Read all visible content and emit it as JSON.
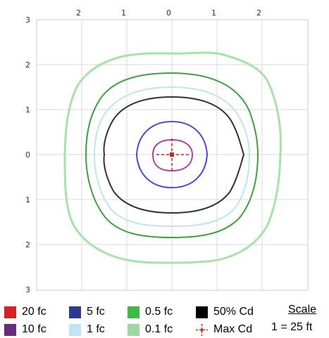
{
  "plot": {
    "top_ticks": [
      "2",
      "1",
      "0",
      "1",
      "2"
    ],
    "left_ticks": [
      "3",
      "2",
      "1",
      "0",
      "1",
      "2",
      "3"
    ]
  },
  "contours": [
    {
      "key": "0.1fc",
      "color": "#a6e3a6"
    },
    {
      "key": "0.5fc",
      "color": "#3fa13f"
    },
    {
      "key": "1fc",
      "color": "#bfe5ee"
    },
    {
      "key": "50cd",
      "color": "#333333"
    },
    {
      "key": "5fc",
      "color": "#4a4adf"
    },
    {
      "key": "10fc",
      "color": "#a646a6"
    },
    {
      "key": "20fc",
      "color": "#d42020"
    }
  ],
  "legend": {
    "items": [
      {
        "label": "20 fc",
        "color": "#d62027"
      },
      {
        "label": "5 fc",
        "color": "#2b3a8f"
      },
      {
        "label": "0.5 fc",
        "color": "#3dbb46"
      },
      {
        "label": "50% Cd",
        "color": "#000000"
      },
      {
        "label": "10 fc",
        "color": "#6a2b7f"
      },
      {
        "label": "1 fc",
        "color": "#bfe4f2"
      },
      {
        "label": "0.1 fc",
        "color": "#9ed8a0"
      },
      {
        "label": "Max Cd",
        "color": "#d62027",
        "icon": "crosshair-icon"
      }
    ],
    "scale_title": "Scale",
    "scale_value": "1 = 25 ft"
  }
}
